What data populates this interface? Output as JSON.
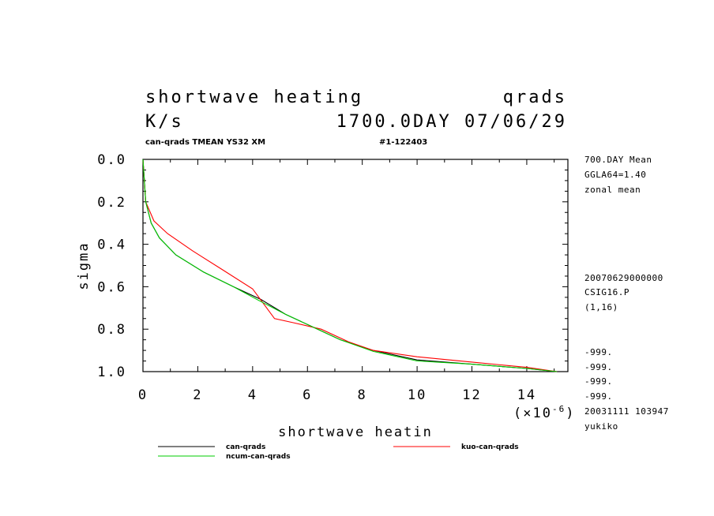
{
  "header": {
    "title_left": "shortwave heating",
    "title_right": "qrads",
    "units": "K/s",
    "time": "1700.0DAY 07/06/29",
    "subtitle": "can-qrads TMEAN YS32 XM",
    "run_id": "#1-122403"
  },
  "side_info": {
    "top": [
      "700.DAY Mean",
      "GGLA64=1.40",
      "zonal mean"
    ],
    "middle": [
      "20070629000000",
      "CSIG16.P",
      "(1,16)"
    ],
    "bottom": [
      "-999.",
      "-999.",
      "-999.",
      "-999.",
      "20031111 103947",
      "yukiko"
    ]
  },
  "multiplier": {
    "prefix": "(×10",
    "exp": "-6",
    "suffix": ")"
  },
  "chart_data": {
    "type": "line",
    "xlabel": "shortwave heatin",
    "ylabel": "sigma",
    "xlim": [
      0,
      15.5
    ],
    "ylim": [
      0.0,
      1.0
    ],
    "y_inverted": true,
    "xticks": [
      0,
      2,
      4,
      6,
      8,
      10,
      12,
      14
    ],
    "yticks": [
      0.0,
      0.2,
      0.4,
      0.6,
      0.8,
      1.0
    ],
    "xtick_labels": [
      "0",
      "2",
      "4",
      "6",
      "8",
      "10",
      "12",
      "14"
    ],
    "ytick_labels": [
      "0.0",
      "0.2",
      "0.4",
      "0.6",
      "0.8",
      "1.0"
    ],
    "series": [
      {
        "name": "can-qrads",
        "color": "#000000",
        "x": [
          0.0,
          0.1,
          0.3,
          0.6,
          1.2,
          2.2,
          3.3,
          4.3,
          5.2,
          6.2,
          7.2,
          8.4,
          10.0,
          12.0,
          14.0,
          15.1
        ],
        "y": [
          0.0,
          0.2,
          0.3,
          0.37,
          0.45,
          0.53,
          0.6,
          0.66,
          0.73,
          0.79,
          0.85,
          0.9,
          0.945,
          0.965,
          0.985,
          1.0
        ]
      },
      {
        "name": "kuo-can-qrads",
        "color": "#ff0000",
        "x": [
          0.0,
          0.1,
          0.4,
          0.9,
          1.8,
          2.9,
          4.0,
          4.8,
          5.5,
          6.5,
          7.5,
          8.4,
          10.0,
          12.0,
          14.0,
          15.1
        ],
        "y": [
          0.0,
          0.2,
          0.29,
          0.35,
          0.43,
          0.52,
          0.61,
          0.75,
          0.77,
          0.8,
          0.86,
          0.9,
          0.93,
          0.955,
          0.98,
          1.0
        ]
      },
      {
        "name": "ncum-can-qrads",
        "color": "#00cc00",
        "x": [
          0.0,
          0.1,
          0.3,
          0.6,
          1.2,
          2.2,
          3.3,
          4.3,
          5.2,
          6.2,
          7.2,
          8.4,
          10.0,
          12.0,
          14.0,
          15.1
        ],
        "y": [
          0.0,
          0.2,
          0.3,
          0.37,
          0.45,
          0.53,
          0.6,
          0.67,
          0.73,
          0.79,
          0.85,
          0.905,
          0.95,
          0.965,
          0.985,
          1.0
        ]
      }
    ]
  }
}
